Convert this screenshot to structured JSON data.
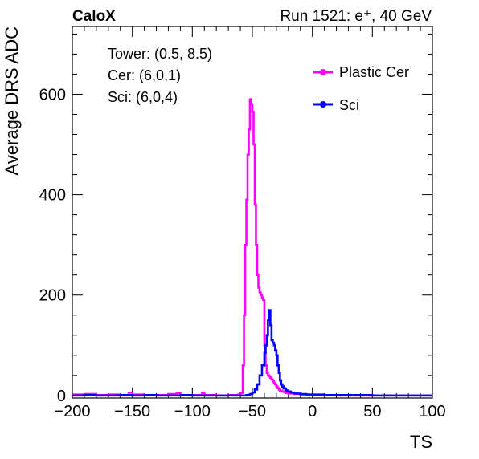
{
  "chart_data": {
    "type": "line",
    "experiment": "CaloX",
    "run_label": "Run 1521: e⁺, 40 GeV",
    "xlabel": "TS",
    "ylabel": "Average DRS ADC",
    "xlim": [
      -200,
      100
    ],
    "ylim": [
      -5,
      735
    ],
    "x_ticks": [
      -200,
      -150,
      -100,
      -50,
      0,
      50,
      100
    ],
    "y_ticks": [
      0,
      200,
      400,
      600
    ],
    "info_box": [
      "Tower: (0.5, 8.5)",
      "Cer: (6,0,1)",
      "Sci: (6,0,4)"
    ],
    "legend_position": "top-right",
    "grid": false,
    "series": [
      {
        "name": "Plastic Cer",
        "color": "#ff00ff",
        "x": [
          -200,
          -190,
          -180,
          -170,
          -160,
          -153,
          -150,
          -140,
          -130,
          -120,
          -113,
          -110,
          -100,
          -92,
          -90,
          -80,
          -70,
          -62,
          -60,
          -58,
          -57,
          -56,
          -55,
          -54,
          -53,
          -52,
          -51,
          -50,
          -49,
          -48,
          -47,
          -46,
          -45,
          -44,
          -43,
          -42,
          -41,
          -40,
          -39,
          -38,
          -37,
          -36,
          -35,
          -34,
          -33,
          -32,
          -31,
          -30,
          -29,
          -28,
          -27,
          -26,
          -25,
          -24,
          -22,
          -20,
          -15,
          -10,
          0,
          10,
          20,
          50,
          100
        ],
        "y": [
          2,
          3,
          1,
          2,
          0,
          6,
          2,
          1,
          1,
          3,
          5,
          1,
          1,
          6,
          1,
          0,
          1,
          2,
          5,
          60,
          160,
          300,
          390,
          480,
          530,
          590,
          580,
          565,
          500,
          380,
          300,
          240,
          215,
          205,
          200,
          195,
          190,
          100,
          60,
          45,
          40,
          38,
          35,
          32,
          28,
          25,
          22,
          18,
          15,
          12,
          10,
          9,
          8,
          7,
          5,
          4,
          3,
          2,
          1,
          1,
          0,
          0,
          0
        ]
      },
      {
        "name": "Sci",
        "color": "#0000ff",
        "x": [
          -200,
          -190,
          -180,
          -170,
          -160,
          -150,
          -140,
          -130,
          -120,
          -110,
          -100,
          -90,
          -80,
          -70,
          -60,
          -55,
          -52,
          -50,
          -48,
          -46,
          -44,
          -42,
          -40,
          -39,
          -38,
          -37,
          -36,
          -35,
          -34,
          -33,
          -32,
          -31,
          -30,
          -29,
          -28,
          -27,
          -26,
          -25,
          -24,
          -22,
          -20,
          -18,
          -15,
          -10,
          -5,
          0,
          10,
          20,
          50,
          100
        ],
        "y": [
          0,
          1,
          0,
          0,
          1,
          0,
          1,
          0,
          0,
          1,
          0,
          0,
          0,
          0,
          0,
          1,
          3,
          6,
          12,
          22,
          40,
          60,
          85,
          100,
          120,
          150,
          170,
          140,
          110,
          105,
          100,
          90,
          80,
          60,
          45,
          30,
          22,
          18,
          14,
          10,
          8,
          6,
          4,
          3,
          2,
          2,
          1,
          1,
          0,
          0
        ]
      }
    ]
  }
}
